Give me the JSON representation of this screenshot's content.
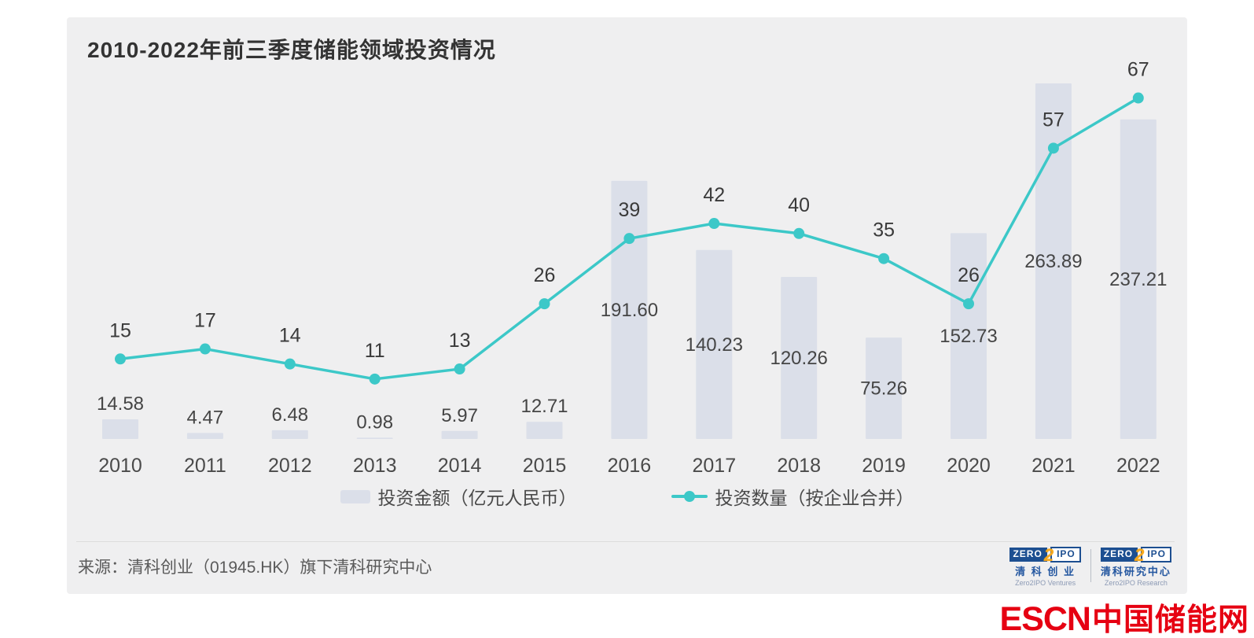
{
  "title": "2010-2022年前三季度储能领域投资情况",
  "chart_data": {
    "type": "bar",
    "categories": [
      "2010",
      "2011",
      "2012",
      "2013",
      "2014",
      "2015",
      "2016",
      "2017",
      "2018",
      "2019",
      "2020",
      "2021",
      "2022"
    ],
    "series": [
      {
        "name": "投资金额（亿元人民币）",
        "type": "bar",
        "values": [
          14.58,
          4.47,
          6.48,
          0.98,
          5.97,
          12.71,
          191.6,
          140.23,
          120.26,
          75.26,
          152.73,
          263.89,
          237.21
        ],
        "color": "#dbdfe9"
      },
      {
        "name": "投资数量（按企业合并）",
        "type": "line",
        "values": [
          15,
          17,
          14,
          11,
          13,
          26,
          39,
          42,
          40,
          35,
          26,
          57,
          67
        ],
        "color": "#3cc8c8"
      }
    ],
    "title": "2010-2022年前三季度储能领域投资情况",
    "xlabel": "",
    "ylabel": "",
    "bar_axis_range": [
      0,
      300
    ],
    "line_axis_range": [
      0,
      80
    ],
    "grid": false,
    "axes_hidden": true,
    "legend_position": "bottom",
    "value_labels_shown": true
  },
  "legend": {
    "amount_label": "投资金额（亿元人民币）",
    "count_label": "投资数量（按企业合并）"
  },
  "footer": {
    "source": "来源：清科创业（01945.HK）旗下清科研究中心"
  },
  "logos": {
    "ventures": {
      "zero": "ZERO",
      "two": "2",
      "ipo": "IPO",
      "cn": "清 科 创 业",
      "en": "Zero2IPO Ventures"
    },
    "research": {
      "zero": "ZERO",
      "two": "2",
      "ipo": "IPO",
      "cn": "清科研究中心",
      "en": "Zero2IPO Research"
    }
  },
  "watermark": {
    "latin": "ESCN",
    "cn": "中国储能网",
    "color": "#e60012"
  },
  "colors": {
    "card_background": "#efeff0",
    "bar": "#dbdfe9",
    "line": "#3cc8c8",
    "title_text": "#333333",
    "label_text": "#454545",
    "axis_text": "#4a4a4a",
    "source_text": "#5a5a5a",
    "logo_navy": "#1d4f91",
    "logo_orange": "#f6a81c"
  }
}
